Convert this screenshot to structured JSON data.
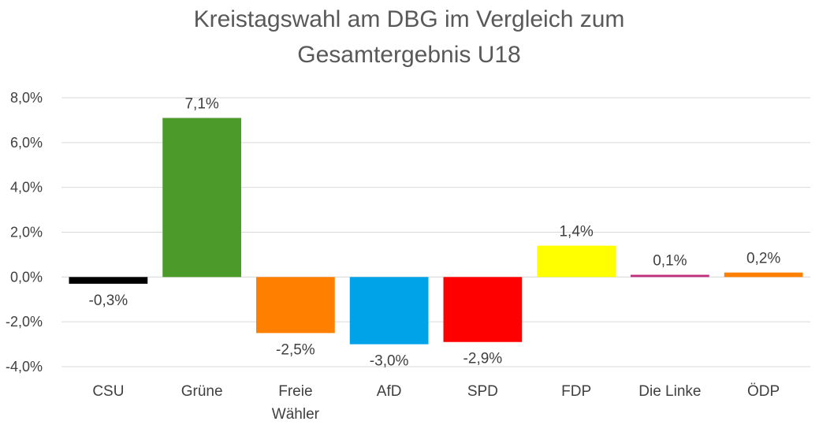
{
  "chart_data": {
    "type": "bar",
    "title_lines": [
      "Kreistagswahl am DBG im Vergleich zum",
      "Gesamtergebnis U18"
    ],
    "xlabel": "",
    "ylabel": "",
    "categories": [
      {
        "lines": [
          "CSU"
        ]
      },
      {
        "lines": [
          "Grüne"
        ]
      },
      {
        "lines": [
          "Freie",
          "Wähler"
        ]
      },
      {
        "lines": [
          "AfD"
        ]
      },
      {
        "lines": [
          "SPD"
        ]
      },
      {
        "lines": [
          "FDP"
        ]
      },
      {
        "lines": [
          "Die Linke"
        ]
      },
      {
        "lines": [
          "ÖDP"
        ]
      }
    ],
    "values": [
      -0.3,
      7.1,
      -2.5,
      -3.0,
      -2.9,
      1.4,
      0.1,
      0.2
    ],
    "data_labels": [
      "-0,3%",
      "7,1%",
      "-2,5%",
      "-3,0%",
      "-2,9%",
      "1,4%",
      "0,1%",
      "0,2%"
    ],
    "colors": [
      "#000000",
      "#4c9a2a",
      "#ff8000",
      "#00a2e8",
      "#ff0000",
      "#ffff00",
      "#c0307f",
      "#ff8000"
    ],
    "ylim": [
      -4,
      8
    ],
    "yticks": [
      -4,
      -2,
      0,
      2,
      4,
      6,
      8
    ],
    "ytick_labels": [
      "-4,0%",
      "-2,0%",
      "0,0%",
      "2,0%",
      "4,0%",
      "6,0%",
      "8,0%"
    ],
    "grid": true,
    "legend": "none"
  }
}
